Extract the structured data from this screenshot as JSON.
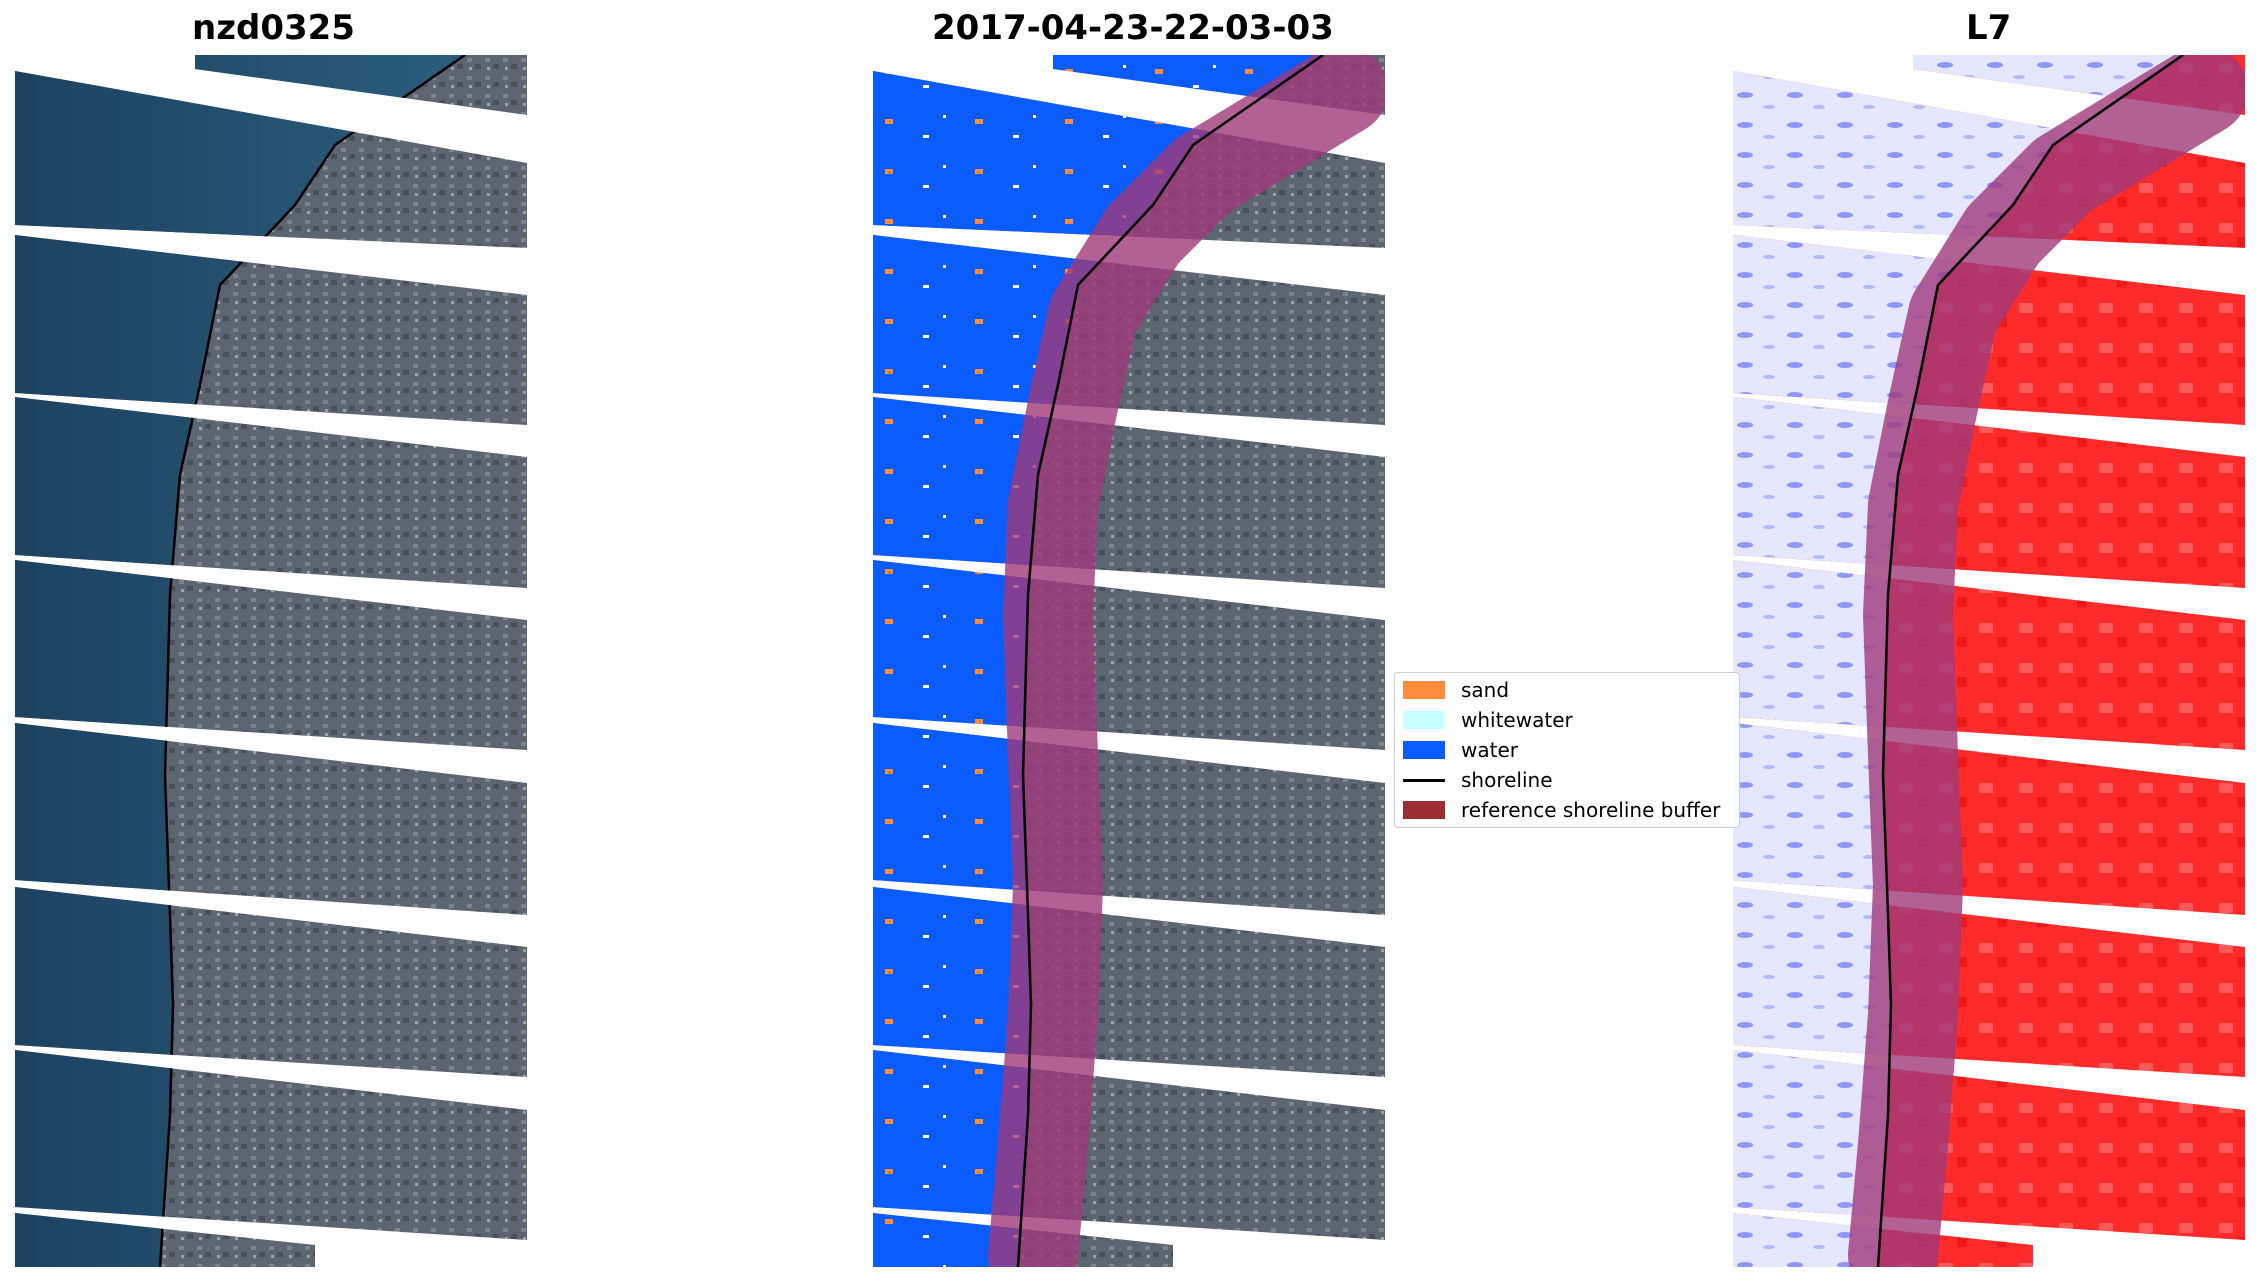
{
  "panels": {
    "left_title": "nzd0325",
    "middle_title": "2017-04-23-22-03-03",
    "right_title": "L7"
  },
  "legend": {
    "items": [
      {
        "label": "sand",
        "color": "#ff8c3a",
        "kind": "patch"
      },
      {
        "label": "whitewater",
        "color": "#c8ffff",
        "kind": "patch"
      },
      {
        "label": "water",
        "color": "#0a5cff",
        "kind": "patch"
      },
      {
        "label": "shoreline",
        "color": "#000000",
        "kind": "line"
      },
      {
        "label": "reference shoreline buffer",
        "color": "#9b2d33",
        "kind": "patch"
      }
    ]
  },
  "colors": {
    "sea": "#1f4a66",
    "land": "#5e6670",
    "water_class": "#0a5cff",
    "buffer": "#a03a7a",
    "index_positive": "#ff2a2a",
    "index_negative": "#dfe3ff"
  }
}
